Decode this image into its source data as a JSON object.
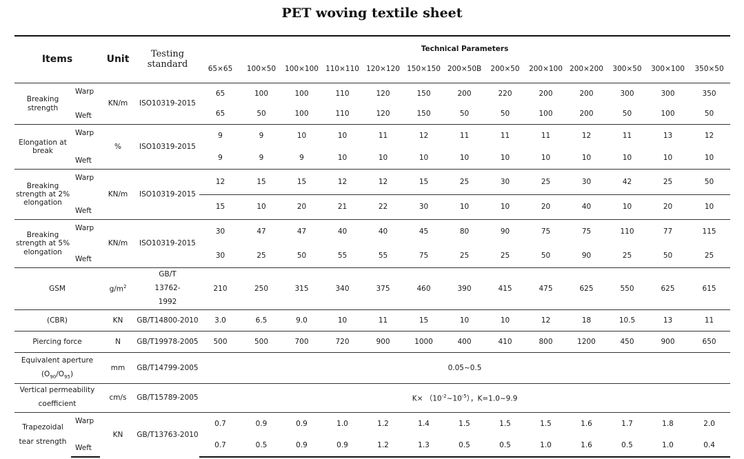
{
  "title": "PET woving textile sheet",
  "header": {
    "items": "Items",
    "unit": "Unit",
    "testing_standard": "Testing standard",
    "technical_parameters": "Technical Parameters",
    "specs": [
      "65×65",
      "100×50",
      "100×100",
      "110×110",
      "120×120",
      "150×150",
      "200×50B",
      "200×50",
      "200×100",
      "200×200",
      "300×50",
      "300×100",
      "350×50"
    ]
  },
  "rows": {
    "breaking_strength": {
      "item": "Breaking strength",
      "unit": "KN/m",
      "standard": "ISO10319-2015",
      "warp_label": "Warp",
      "weft_label": "Weft",
      "warp": [
        "65",
        "100",
        "100",
        "110",
        "120",
        "150",
        "200",
        "220",
        "200",
        "200",
        "300",
        "300",
        "350"
      ],
      "weft": [
        "65",
        "50",
        "100",
        "110",
        "120",
        "150",
        "50",
        "50",
        "100",
        "200",
        "50",
        "100",
        "50"
      ]
    },
    "elongation": {
      "item": "Elongation at break",
      "unit": "%",
      "standard": "ISO10319-2015",
      "warp_label": "Warp",
      "weft_label": "Weft",
      "warp": [
        "9",
        "9",
        "10",
        "10",
        "11",
        "12",
        "11",
        "11",
        "11",
        "12",
        "11",
        "13",
        "12"
      ],
      "weft": [
        "9",
        "9",
        "9",
        "10",
        "10",
        "10",
        "10",
        "10",
        "10",
        "10",
        "10",
        "10",
        "10"
      ]
    },
    "bs2": {
      "item": "Breaking strength at 2% elongation",
      "unit": "KN/m",
      "standard": "ISO10319-2015",
      "warp_label": "Warp",
      "weft_label": "Weft",
      "warp": [
        "12",
        "15",
        "15",
        "12",
        "12",
        "15",
        "25",
        "30",
        "25",
        "30",
        "42",
        "25",
        "50"
      ],
      "weft": [
        "15",
        "10",
        "20",
        "21",
        "22",
        "30",
        "10",
        "10",
        "20",
        "40",
        "10",
        "20",
        "10"
      ]
    },
    "bs5": {
      "item": "Breaking strength at 5% elongation",
      "unit": "KN/m",
      "standard": "ISO10319-2015",
      "warp_label": "Warp",
      "weft_label": "Weft",
      "warp": [
        "30",
        "47",
        "47",
        "40",
        "40",
        "45",
        "80",
        "90",
        "75",
        "75",
        "110",
        "77",
        "115"
      ],
      "weft": [
        "30",
        "25",
        "50",
        "55",
        "55",
        "75",
        "25",
        "25",
        "50",
        "90",
        "25",
        "50",
        "25"
      ]
    },
    "gsm": {
      "item": "GSM",
      "unit_base": "g/m",
      "unit_sup": "2",
      "standard": "GB/T 13762-1992",
      "values": [
        "210",
        "250",
        "315",
        "340",
        "375",
        "460",
        "390",
        "415",
        "475",
        "625",
        "550",
        "625",
        "615"
      ]
    },
    "cbr": {
      "item": "(CBR)",
      "unit": "KN",
      "standard": "GB/T14800-2010",
      "values": [
        "3.0",
        "6.5",
        "9.0",
        "10",
        "11",
        "15",
        "10",
        "10",
        "12",
        "18",
        "10.5",
        "13",
        "11"
      ]
    },
    "piercing": {
      "item": "Piercing force",
      "unit": "N",
      "standard": "GB/T19978-2005",
      "values": [
        "500",
        "500",
        "700",
        "720",
        "900",
        "1000",
        "400",
        "410",
        "800",
        "1200",
        "450",
        "900",
        "650"
      ]
    },
    "aperture": {
      "item_line1": "Equivalent aperture",
      "item_line2_a": "(O",
      "item_line2_sub1": "90",
      "item_line2_b": "/O",
      "item_line2_sub2": "95",
      "item_line2_c": ")",
      "unit": "mm",
      "standard": "GB/T14799-2005",
      "value": "0.05~0.5"
    },
    "permeability": {
      "item": "Vertical permeability coefficient",
      "unit": "cm/s",
      "standard": "GB/T15789-2005",
      "value_a": "K× （10",
      "value_sup1": "-2",
      "value_b": "~10",
      "value_sup2": "-5",
      "value_c": "），K=1.0~9.9"
    },
    "tear": {
      "item": "Trapezoidal tear strength",
      "unit": "KN",
      "standard": "GB/T13763-2010",
      "warp_label": "Warp",
      "weft_label": "Weft",
      "warp": [
        "0.7",
        "0.9",
        "0.9",
        "1.0",
        "1.2",
        "1.4",
        "1.5",
        "1.5",
        "1.5",
        "1.6",
        "1.7",
        "1.8",
        "2.0"
      ],
      "weft": [
        "0.7",
        "0.5",
        "0.9",
        "0.9",
        "1.2",
        "1.3",
        "0.5",
        "0.5",
        "1.0",
        "1.6",
        "0.5",
        "1.0",
        "0.4"
      ]
    }
  }
}
